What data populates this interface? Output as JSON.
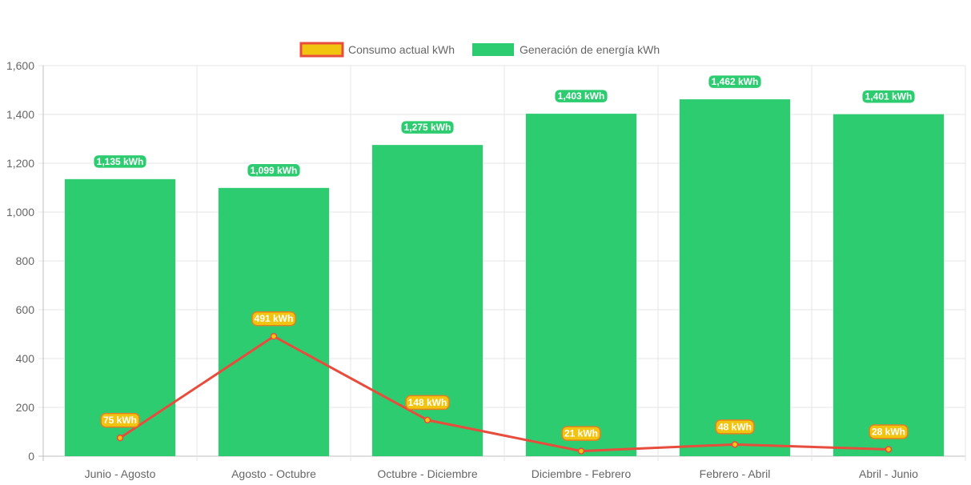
{
  "chart_data": {
    "type": "bar",
    "title": "",
    "xlabel": "",
    "ylabel": "",
    "ylim": [
      0,
      1600
    ],
    "yticks": [
      0,
      200,
      400,
      600,
      800,
      1000,
      1200,
      1400,
      1600
    ],
    "ytick_labels": [
      "0",
      "200",
      "400",
      "600",
      "800",
      "1,000",
      "1,200",
      "1,400",
      "1,600"
    ],
    "grid": true,
    "legend_position": "top",
    "categories": [
      "Junio - Agosto",
      "Agosto - Octubre",
      "Octubre - Diciembre",
      "Diciembre - Febrero",
      "Febrero - Abril",
      "Abril - Junio"
    ],
    "series": [
      {
        "name": "Consumo actual kWh",
        "type": "line",
        "color": "#e74c3c",
        "marker_color": "#f1c40f",
        "values": [
          75,
          491,
          148,
          21,
          48,
          28
        ],
        "labels": [
          "75 kWh",
          "491 kWh",
          "148 kWh",
          "21 kWh",
          "48 kWh",
          "28 kWh"
        ]
      },
      {
        "name": "Generación de energía kWh",
        "type": "bar",
        "color": "#2ecc71",
        "values": [
          1135,
          1099,
          1275,
          1403,
          1462,
          1401
        ],
        "labels": [
          "1,135 kWh",
          "1,099 kWh",
          "1,275 kWh",
          "1,403 kWh",
          "1,462 kWh",
          "1,401 kWh"
        ]
      }
    ]
  }
}
